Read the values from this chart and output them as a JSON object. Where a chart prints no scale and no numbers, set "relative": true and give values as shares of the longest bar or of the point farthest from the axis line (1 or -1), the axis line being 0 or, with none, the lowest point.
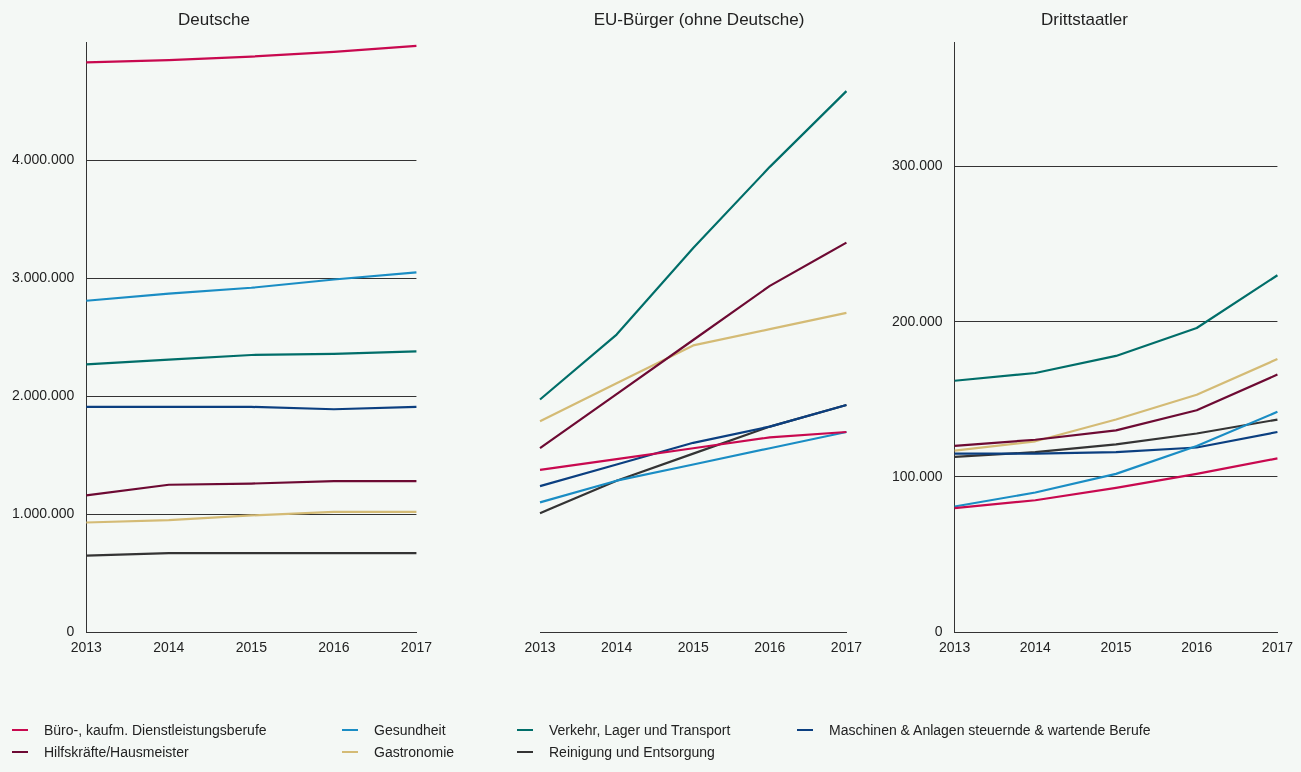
{
  "chart_data": [
    {
      "type": "line",
      "title": "Deutsche",
      "categories": [
        "2013",
        "2014",
        "2015",
        "2016",
        "2017"
      ],
      "ylim": [
        0,
        5000000
      ],
      "yticks": [
        0,
        {
          "value": 1000000,
          "label": "1.000.000"
        },
        {
          "value": 2000000,
          "label": "2.000.000"
        },
        {
          "value": 3000000,
          "label": "3.000.000"
        },
        {
          "value": 4000000,
          "label": "4.000.000"
        }
      ],
      "grid": "y",
      "legend": "bottom",
      "marker": "none",
      "line_style": "solid",
      "series": [
        {
          "name": "Büro-, kaufm. Dienstleistungsberufe",
          "color": "#c8094f",
          "values": [
            4830000,
            4850000,
            4880000,
            4920000,
            4970000
          ]
        },
        {
          "name": "Gesundheit",
          "color": "#1a8dc4",
          "values": [
            2810000,
            2870000,
            2920000,
            2990000,
            3050000
          ]
        },
        {
          "name": "Verkehr, Lager und Transport",
          "color": "#006e69",
          "values": [
            2270000,
            2310000,
            2350000,
            2360000,
            2380000
          ]
        },
        {
          "name": "Maschinen & Anlagen steuernde & wartende Berufe",
          "color": "#0b3f80",
          "values": [
            1910000,
            1910000,
            1910000,
            1890000,
            1910000
          ]
        },
        {
          "name": "Hilfskräfte/Hausmeister",
          "color": "#6d0a33",
          "values": [
            1160000,
            1250000,
            1260000,
            1280000,
            1280000
          ]
        },
        {
          "name": "Gastronomie",
          "color": "#d4bb75",
          "values": [
            930000,
            950000,
            990000,
            1020000,
            1020000
          ]
        },
        {
          "name": "Reinigung und Entsorgung",
          "color": "#343434",
          "values": [
            650000,
            670000,
            670000,
            670000,
            670000
          ]
        }
      ]
    },
    {
      "type": "line",
      "title": "EU-Bürger (ohne Deutsche)",
      "categories": [
        "2013",
        "2014",
        "2015",
        "2016",
        "2017"
      ],
      "relative": true,
      "tick_labels": "x",
      "marker": "none",
      "line_style": "solid",
      "series": [
        {
          "color": "#c8094f",
          "values": [
            0.3,
            0.32,
            0.34,
            0.36,
            0.37
          ]
        },
        {
          "color": "#1a8dc4",
          "values": [
            0.24,
            0.28,
            0.31,
            0.34,
            0.37
          ]
        },
        {
          "color": "#006e69",
          "values": [
            0.43,
            0.55,
            0.71,
            0.86,
            1
          ]
        },
        {
          "color": "#0b3f80",
          "values": [
            0.27,
            0.31,
            0.35,
            0.38,
            0.42
          ]
        },
        {
          "color": "#6d0a33",
          "values": [
            0.34,
            0.44,
            0.54,
            0.64,
            0.72
          ]
        },
        {
          "color": "#d4bb75",
          "values": [
            0.39,
            0.46,
            0.53,
            0.56,
            0.59
          ]
        },
        {
          "color": "#343434",
          "values": [
            0.22,
            0.28,
            0.33,
            0.38,
            0.42
          ]
        }
      ]
    },
    {
      "type": "line",
      "title": "Drittstaatler",
      "categories": [
        "2013",
        "2014",
        "2015",
        "2016",
        "2017"
      ],
      "ylim": [
        0,
        380000
      ],
      "yticks": [
        0,
        {
          "value": 100000,
          "label": "100.000"
        },
        {
          "value": 200000,
          "label": "200.000"
        },
        {
          "value": 300000,
          "label": "300.000"
        }
      ],
      "grid": "y",
      "marker": "none",
      "line_style": "solid",
      "series": [
        {
          "color": "#c8094f",
          "values": [
            80000,
            85000,
            93000,
            102000,
            112000
          ]
        },
        {
          "color": "#1a8dc4",
          "values": [
            81000,
            90000,
            102000,
            120000,
            142000
          ]
        },
        {
          "color": "#006e69",
          "values": [
            162000,
            167000,
            178000,
            196000,
            230000
          ]
        },
        {
          "color": "#0b3f80",
          "values": [
            115000,
            115000,
            116000,
            119000,
            129000
          ]
        },
        {
          "color": "#6d0a33",
          "values": [
            120000,
            124000,
            130000,
            143000,
            166000
          ]
        },
        {
          "color": "#d4bb75",
          "values": [
            117000,
            123000,
            137000,
            153000,
            176000
          ]
        },
        {
          "color": "#343434",
          "values": [
            113000,
            116000,
            121000,
            128000,
            137000
          ]
        }
      ]
    }
  ]
}
